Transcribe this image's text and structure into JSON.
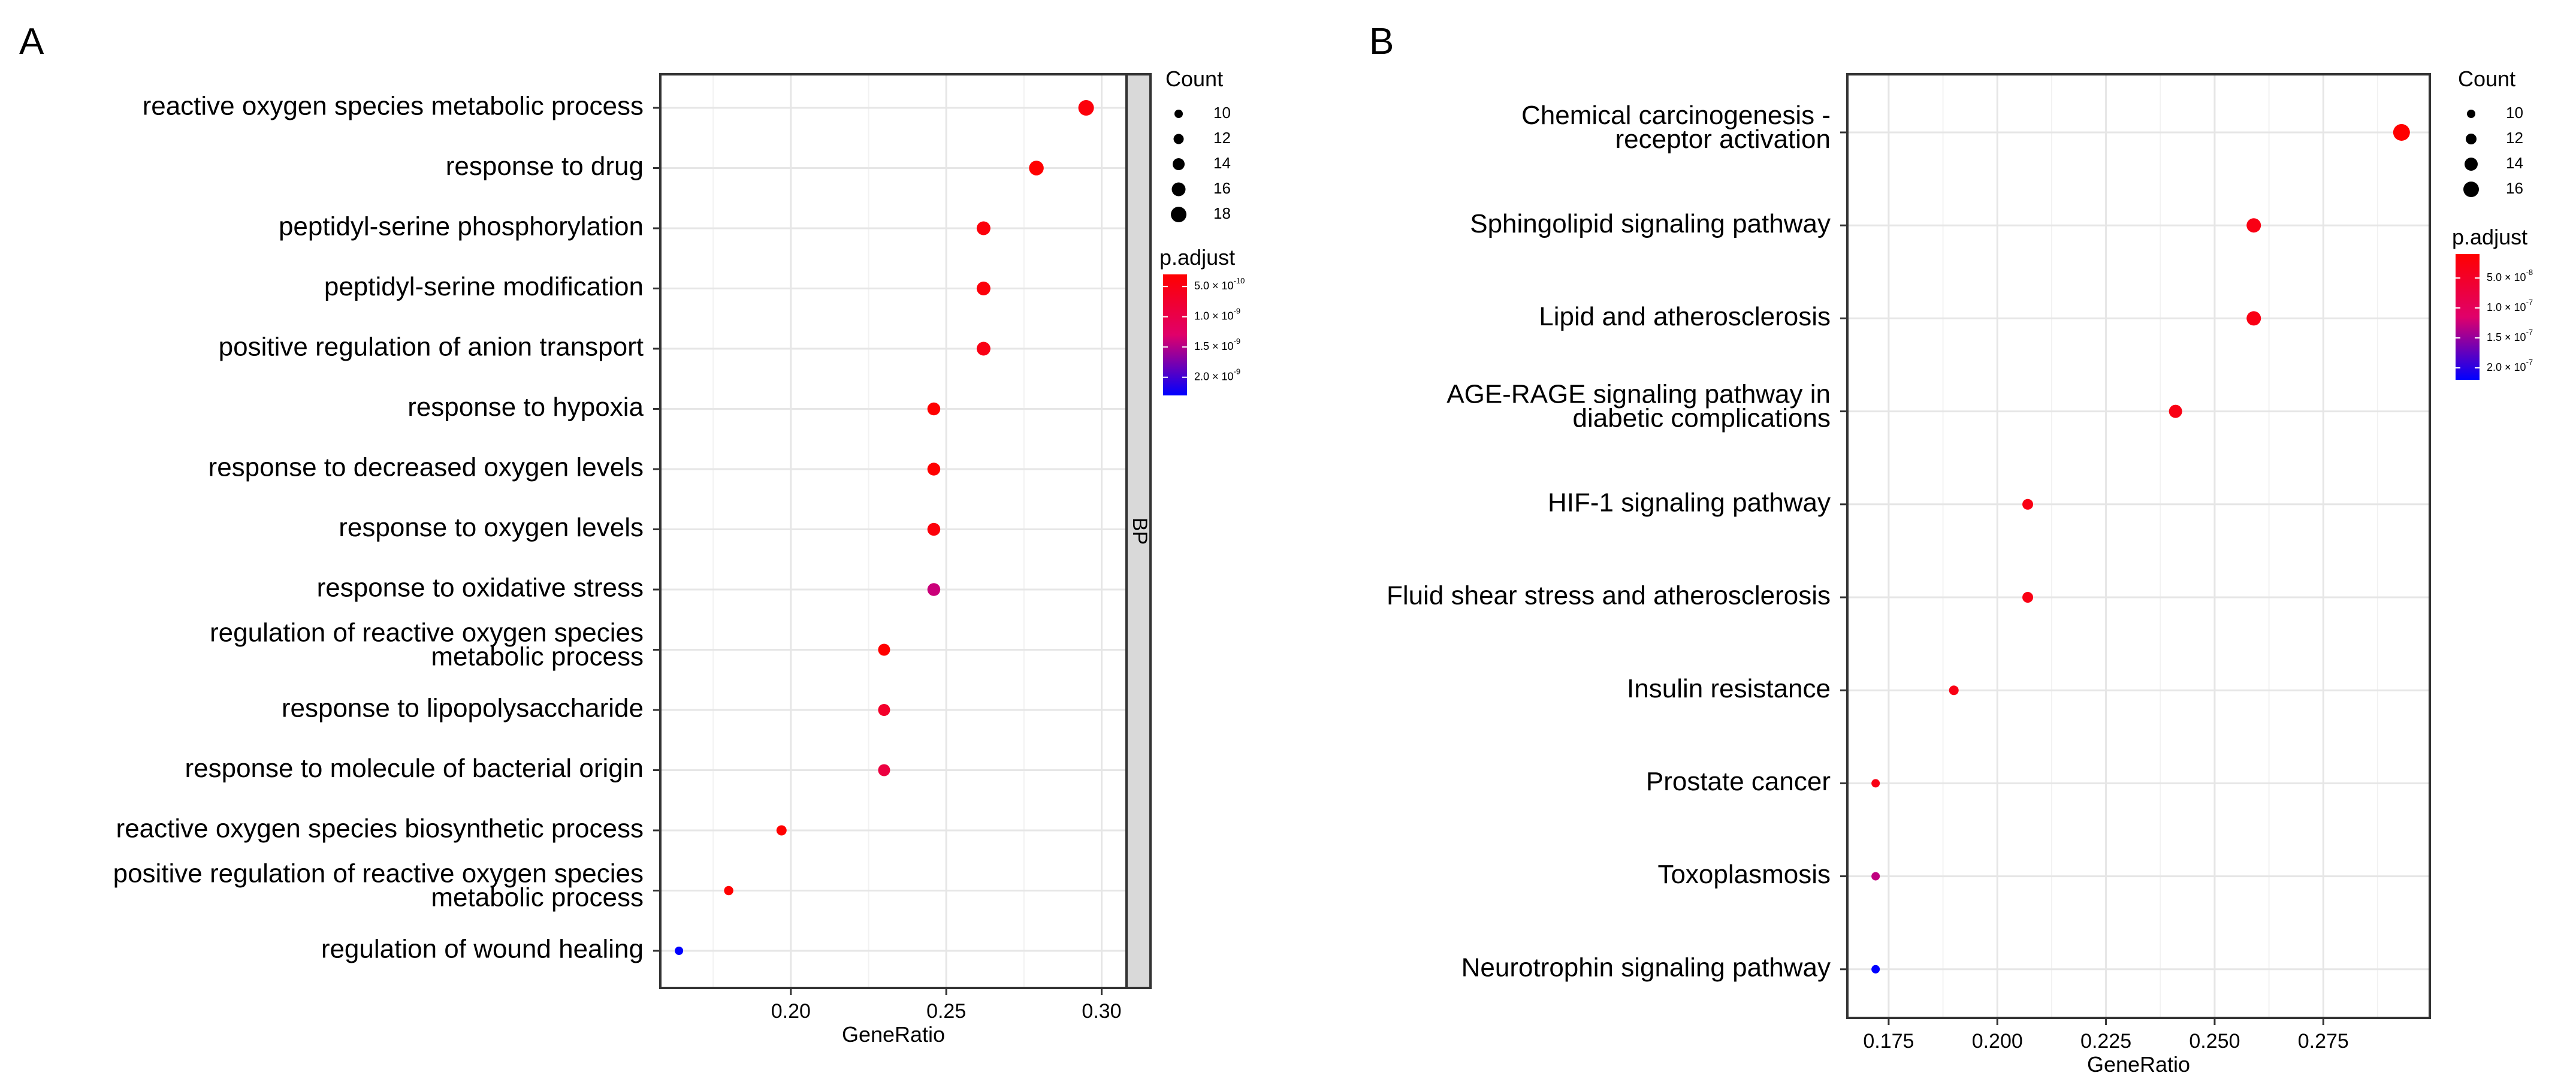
{
  "chart_data": [
    {
      "type": "scatter",
      "panel_label": "A",
      "xlabel": "GeneRatio",
      "ylabel": "",
      "xlim": [
        0.158,
        0.308
      ],
      "xticks": [
        0.2,
        0.25,
        0.3
      ],
      "xtick_labels": [
        "0.20",
        "0.25",
        "0.30"
      ],
      "facet_label": "BP",
      "grid": true,
      "legend_position": "right",
      "terms": [
        {
          "lines": [
            "reactive oxygen species metabolic process"
          ],
          "x": 0.295,
          "count": 18,
          "padj": 4e-10
        },
        {
          "lines": [
            "response to drug"
          ],
          "x": 0.279,
          "count": 17,
          "padj": 3e-10
        },
        {
          "lines": [
            "peptidyl-serine phosphorylation"
          ],
          "x": 0.262,
          "count": 16,
          "padj": 4e-10
        },
        {
          "lines": [
            "peptidyl-serine modification"
          ],
          "x": 0.262,
          "count": 16,
          "padj": 4e-10
        },
        {
          "lines": [
            "positive regulation of anion transport"
          ],
          "x": 0.262,
          "count": 16,
          "padj": 5e-10
        },
        {
          "lines": [
            "response to hypoxia"
          ],
          "x": 0.246,
          "count": 15,
          "padj": 3e-10
        },
        {
          "lines": [
            "response to decreased oxygen levels"
          ],
          "x": 0.246,
          "count": 15,
          "padj": 3e-10
        },
        {
          "lines": [
            "response to oxygen levels"
          ],
          "x": 0.246,
          "count": 15,
          "padj": 4e-10
        },
        {
          "lines": [
            "response to oxidative stress"
          ],
          "x": 0.246,
          "count": 15,
          "padj": 1.4e-09
        },
        {
          "lines": [
            "regulation of reactive oxygen species",
            "metabolic process"
          ],
          "x": 0.23,
          "count": 14,
          "padj": 3e-10
        },
        {
          "lines": [
            "response to lipopolysaccharide"
          ],
          "x": 0.23,
          "count": 14,
          "padj": 7e-10
        },
        {
          "lines": [
            "response to molecule of bacterial origin"
          ],
          "x": 0.23,
          "count": 14,
          "padj": 9e-10
        },
        {
          "lines": [
            "reactive oxygen species biosynthetic process"
          ],
          "x": 0.197,
          "count": 12,
          "padj": 3e-10
        },
        {
          "lines": [
            "positive regulation of reactive oxygen species",
            "metabolic process"
          ],
          "x": 0.18,
          "count": 11,
          "padj": 3e-10
        },
        {
          "lines": [
            "regulation of wound healing"
          ],
          "x": 0.164,
          "count": 10,
          "padj": 2.3e-09
        }
      ],
      "size_legend": {
        "title": "Count",
        "values": [
          10,
          12,
          14,
          16,
          18
        ]
      },
      "color_legend": {
        "title": "p.adjust",
        "min": 3e-10,
        "max": 2.3e-09,
        "ticks": [
          5e-10,
          1e-09,
          1.5e-09,
          2e-09
        ],
        "tick_mantissas": [
          "5.0",
          "1.0",
          "1.5",
          "2.0"
        ],
        "tick_exponents": [
          "-10",
          "-9",
          "-9",
          "-9"
        ],
        "low_color": "#FF0000",
        "high_color": "#0000FF"
      }
    },
    {
      "type": "scatter",
      "panel_label": "B",
      "xlabel": "GeneRatio",
      "ylabel": "",
      "xlim": [
        0.1655,
        0.2995
      ],
      "xticks": [
        0.175,
        0.2,
        0.225,
        0.25,
        0.275
      ],
      "xtick_labels": [
        "0.175",
        "0.200",
        "0.225",
        "0.250",
        "0.275"
      ],
      "grid": true,
      "legend_position": "right",
      "terms": [
        {
          "lines": [
            "Chemical carcinogenesis -",
            "receptor activation"
          ],
          "x": 0.293,
          "count": 17,
          "padj": 1e-08
        },
        {
          "lines": [
            "Sphingolipid signaling pathway"
          ],
          "x": 0.259,
          "count": 15,
          "padj": 3e-08
        },
        {
          "lines": [
            "Lipid and atherosclerosis"
          ],
          "x": 0.259,
          "count": 15,
          "padj": 3e-08
        },
        {
          "lines": [
            "AGE-RAGE signaling pathway in",
            "diabetic complications"
          ],
          "x": 0.241,
          "count": 14,
          "padj": 3e-08
        },
        {
          "lines": [
            "HIF-1 signaling pathway"
          ],
          "x": 0.207,
          "count": 12,
          "padj": 3e-08
        },
        {
          "lines": [
            "Fluid shear stress and atherosclerosis"
          ],
          "x": 0.207,
          "count": 12,
          "padj": 3e-08
        },
        {
          "lines": [
            "Insulin resistance"
          ],
          "x": 0.19,
          "count": 11,
          "padj": 3e-08
        },
        {
          "lines": [
            "Prostate cancer"
          ],
          "x": 0.172,
          "count": 10,
          "padj": 3e-08
        },
        {
          "lines": [
            "Toxoplasmosis"
          ],
          "x": 0.172,
          "count": 10,
          "padj": 1.3e-07
        },
        {
          "lines": [
            "Neurotrophin signaling pathway"
          ],
          "x": 0.172,
          "count": 10,
          "padj": 2.2e-07
        }
      ],
      "size_legend": {
        "title": "Count",
        "values": [
          10,
          12,
          14,
          16
        ]
      },
      "color_legend": {
        "title": "p.adjust",
        "min": 1e-08,
        "max": 2.2e-07,
        "ticks": [
          5e-08,
          1e-07,
          1.5e-07,
          2e-07
        ],
        "tick_mantissas": [
          "5.0",
          "1.0",
          "1.5",
          "2.0"
        ],
        "tick_exponents": [
          "-8",
          "-7",
          "-7",
          "-7"
        ],
        "low_color": "#FF0000",
        "high_color": "#0000FF"
      }
    }
  ]
}
